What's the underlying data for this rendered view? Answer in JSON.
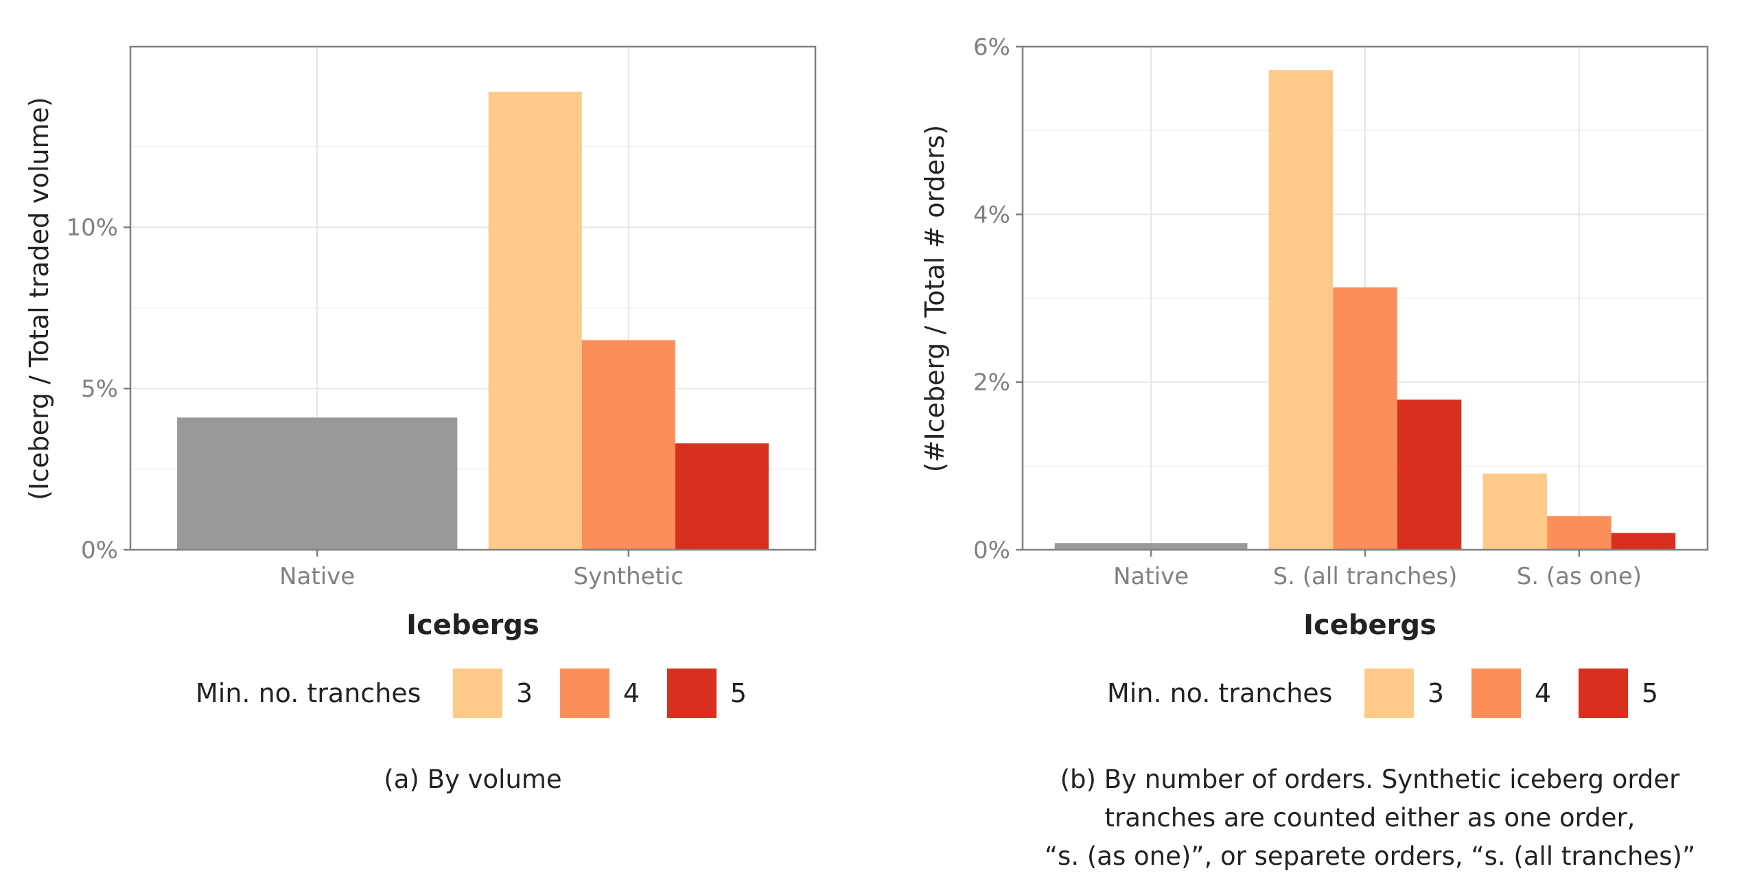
{
  "legend": {
    "title": "Min. no. tranches",
    "items": [
      {
        "label": "3",
        "color": "#fdca8a"
      },
      {
        "label": "4",
        "color": "#fc8f59"
      },
      {
        "label": "5",
        "color": "#d7301f"
      }
    ]
  },
  "native_color": "#999999",
  "chart_data": [
    {
      "type": "bar",
      "title": "",
      "xlabel": "Icebergs",
      "ylabel": "(Iceberg / Total traded volume)",
      "caption": "(a) By volume",
      "categories": [
        "Native",
        "Synthetic"
      ],
      "ylim": [
        0,
        15.6
      ],
      "yticks": [
        0,
        5,
        10
      ],
      "ytick_labels": [
        "0%",
        "5%",
        "10%"
      ],
      "grid": true,
      "legend_position": "bottom",
      "series": [
        {
          "name": "Native",
          "values": [
            4.1,
            null
          ]
        },
        {
          "name": "3",
          "values": [
            null,
            14.2
          ]
        },
        {
          "name": "4",
          "values": [
            null,
            6.5
          ]
        },
        {
          "name": "5",
          "values": [
            null,
            3.3
          ]
        }
      ]
    },
    {
      "type": "bar",
      "title": "",
      "xlabel": "Icebergs",
      "ylabel": "(#Iceberg / Total # orders)",
      "caption": [
        "(b) By number of orders. Synthetic iceberg order",
        "tranches are counted either as one order,",
        "“s. (as one)”, or separete orders, “s. (all tranches)”"
      ],
      "categories": [
        "Native",
        "S. (all tranches)",
        "S. (as one)"
      ],
      "ylim": [
        0,
        6.0
      ],
      "yticks": [
        0,
        2,
        4,
        6
      ],
      "ytick_labels": [
        "0%",
        "2%",
        "4%",
        "6%"
      ],
      "grid": true,
      "legend_position": "bottom",
      "series": [
        {
          "name": "Native",
          "values": [
            0.08,
            null,
            null
          ]
        },
        {
          "name": "3",
          "values": [
            null,
            5.72,
            0.91
          ]
        },
        {
          "name": "4",
          "values": [
            null,
            3.13,
            0.4
          ]
        },
        {
          "name": "5",
          "values": [
            null,
            1.79,
            0.2
          ]
        }
      ]
    }
  ]
}
